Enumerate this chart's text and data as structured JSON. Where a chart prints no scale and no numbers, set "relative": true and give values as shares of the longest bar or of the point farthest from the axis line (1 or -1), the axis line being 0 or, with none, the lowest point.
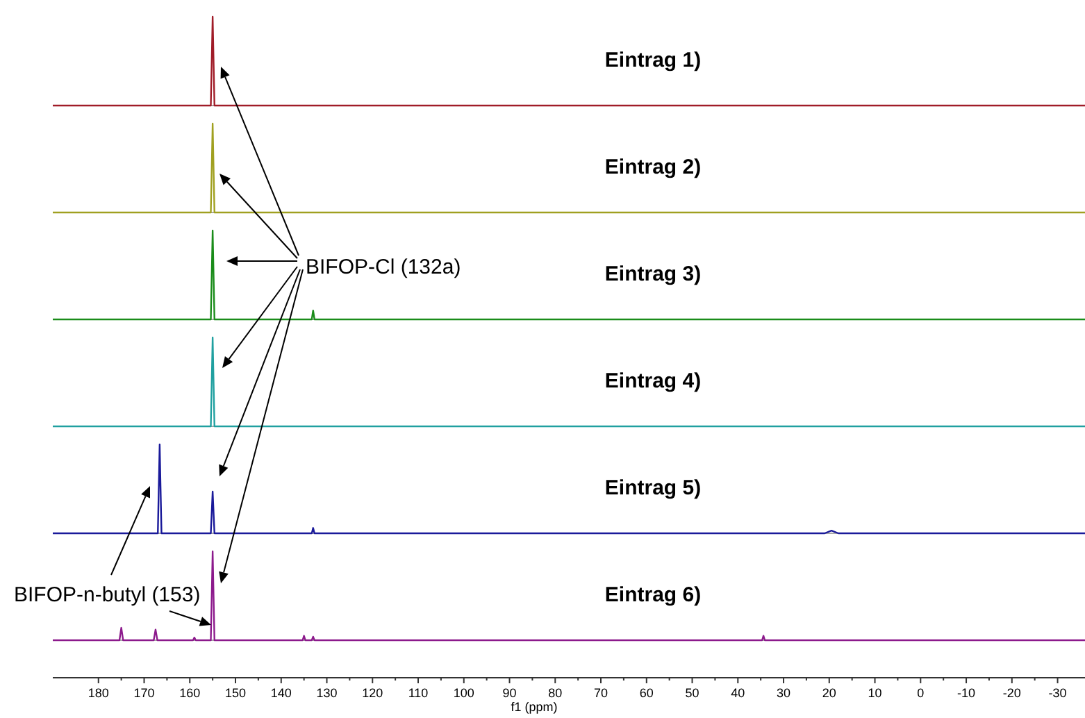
{
  "chart_data": [
    {
      "type": "line",
      "title": "Eintrag 1)",
      "x": [
        190,
        155.4,
        155,
        154.6,
        -36
      ],
      "series": [
        {
          "color": "#a01c28",
          "values": [
            0,
            0,
            1,
            0,
            0
          ]
        }
      ],
      "xlim": [
        190,
        -36
      ],
      "relative": true,
      "tick_labels": false
    },
    {
      "type": "line",
      "title": "Eintrag 2)",
      "x": [
        190,
        155.4,
        155,
        154.6,
        -36
      ],
      "series": [
        {
          "color": "#a0a020",
          "values": [
            0,
            0,
            1,
            0,
            0
          ]
        }
      ],
      "xlim": [
        190,
        -36
      ],
      "relative": true,
      "tick_labels": false
    },
    {
      "type": "line",
      "title": "Eintrag 3)",
      "annotations": [
        "BIFOP-Cl (132a)"
      ],
      "x": [
        190,
        155.4,
        155,
        154.6,
        133.3,
        133,
        132.7,
        -36
      ],
      "series": [
        {
          "color": "#1a8c1a",
          "values": [
            0,
            0,
            1,
            0,
            0,
            0.1,
            0,
            0
          ]
        }
      ],
      "xlim": [
        190,
        -36
      ],
      "relative": true,
      "tick_labels": false
    },
    {
      "type": "line",
      "title": "Eintrag 4)",
      "x": [
        190,
        155.4,
        155,
        154.6,
        -36
      ],
      "series": [
        {
          "color": "#20a0a0",
          "values": [
            0,
            0,
            1,
            0,
            0
          ]
        }
      ],
      "xlim": [
        190,
        -36
      ],
      "relative": true,
      "tick_labels": false
    },
    {
      "type": "line",
      "title": "Eintrag 5)",
      "x": [
        190,
        167,
        166.6,
        166.2,
        155.4,
        155,
        154.6,
        133.3,
        133,
        132.7,
        21,
        19.5,
        18,
        -36
      ],
      "series": [
        {
          "color": "#1a1a9a",
          "values": [
            0,
            0,
            1,
            0,
            0,
            0.47,
            0,
            0,
            0.06,
            0,
            0,
            0.03,
            0,
            0
          ]
        }
      ],
      "xlim": [
        190,
        -36
      ],
      "relative": true,
      "tick_labels": false
    },
    {
      "type": "line",
      "title": "Eintrag 6)",
      "annotations": [
        "BIFOP-n-butyl (153)"
      ],
      "x": [
        190,
        175.4,
        175,
        174.6,
        167.9,
        167.5,
        167.1,
        159.3,
        159,
        158.7,
        155.4,
        155,
        154.6,
        135.3,
        135,
        134.7,
        133.3,
        133,
        132.7,
        34.7,
        34.4,
        34.1,
        -36
      ],
      "series": [
        {
          "color": "#8c1a8c",
          "values": [
            0,
            0,
            0.14,
            0,
            0,
            0.12,
            0,
            0,
            0.03,
            0,
            0,
            1,
            0,
            0,
            0.05,
            0,
            0,
            0.04,
            0,
            0,
            0.05,
            0,
            0
          ]
        }
      ],
      "xlim": [
        190,
        -36
      ],
      "xticks": [
        180,
        170,
        160,
        150,
        140,
        130,
        120,
        110,
        100,
        90,
        80,
        70,
        60,
        50,
        40,
        30,
        20,
        10,
        0,
        -10,
        -20,
        -30
      ],
      "xlabel": "f1 (ppm)",
      "relative": true,
      "tick_labels": "x"
    }
  ]
}
